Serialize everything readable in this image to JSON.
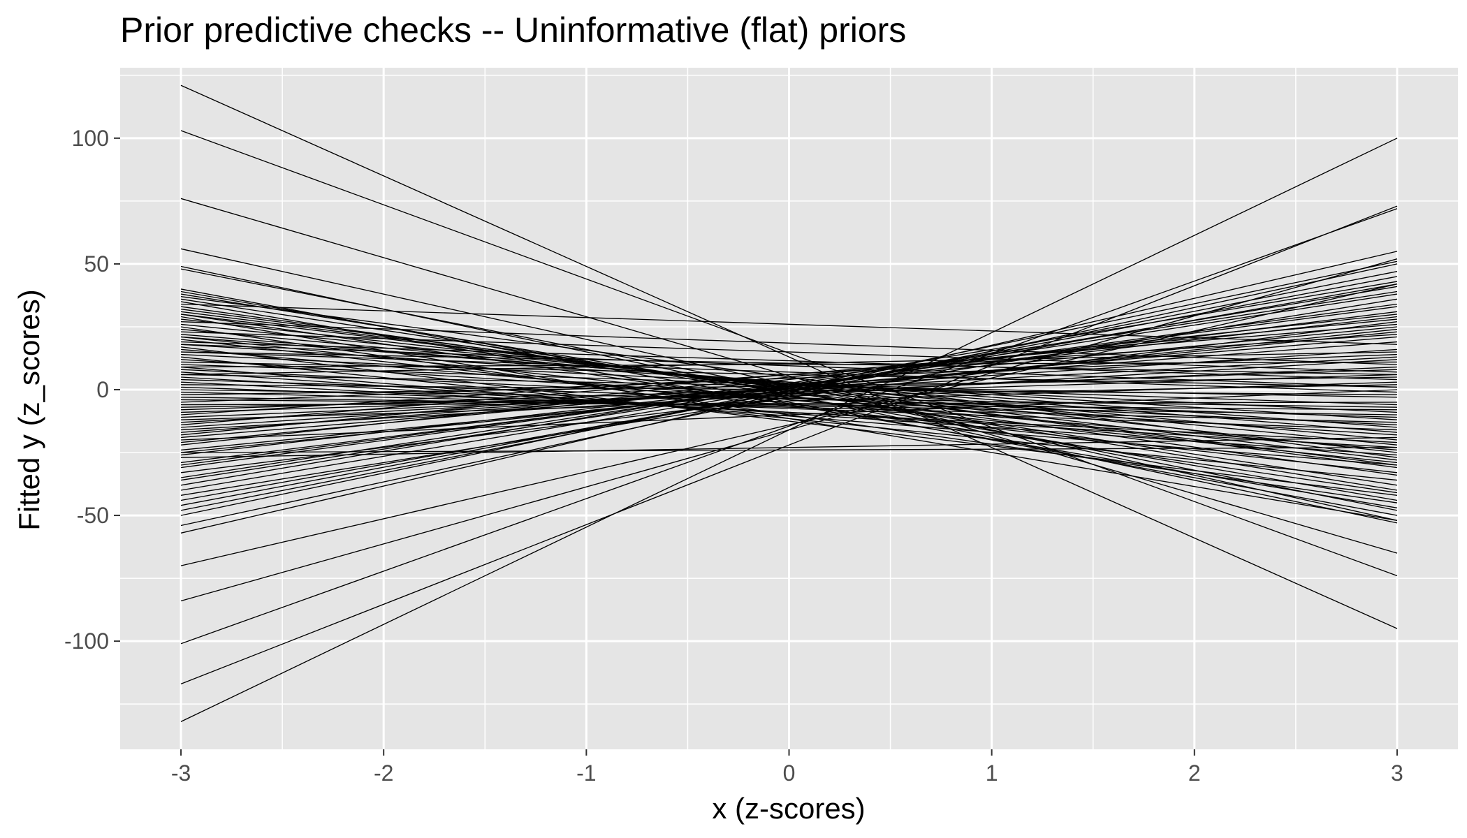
{
  "chart_data": {
    "type": "line",
    "title": "Prior predictive checks -- Uninformative (flat) priors",
    "xlabel": "x (z-scores)",
    "ylabel": "Fitted y (z_scores)",
    "xlim": [
      -3.3,
      3.3
    ],
    "ylim": [
      -143,
      128
    ],
    "x_ticks": [
      "-3",
      "-2",
      "-1",
      "0",
      "1",
      "2",
      "3"
    ],
    "y_ticks": [
      "-100",
      "-50",
      "0",
      "50",
      "100"
    ],
    "x_minor": [
      -2.5,
      -1.5,
      -0.5,
      0.5,
      1.5,
      2.5
    ],
    "y_minor": [
      -125,
      -75,
      -25,
      25,
      75,
      125
    ],
    "grid": true,
    "background": "#e5e5e5",
    "line_color": "#000000",
    "series": [
      {
        "values": [
          -3,
          121,
          3,
          -95
        ]
      },
      {
        "values": [
          -3,
          103,
          3,
          -74
        ]
      },
      {
        "values": [
          -3,
          76,
          3,
          -65
        ]
      },
      {
        "values": [
          -3,
          56,
          3,
          -52
        ]
      },
      {
        "values": [
          -3,
          49,
          3,
          -53
        ]
      },
      {
        "values": [
          -3,
          48,
          3,
          -48
        ]
      },
      {
        "values": [
          -3,
          40,
          3,
          -50
        ]
      },
      {
        "values": [
          -3,
          39,
          3,
          -44
        ]
      },
      {
        "values": [
          -3,
          38,
          3,
          -40
        ]
      },
      {
        "values": [
          -3,
          36,
          3,
          -38
        ]
      },
      {
        "values": [
          -3,
          33,
          3,
          -34
        ]
      },
      {
        "values": [
          -3,
          31,
          3,
          -30
        ]
      },
      {
        "values": [
          -3,
          30,
          3,
          -28
        ]
      },
      {
        "values": [
          -3,
          28,
          3,
          -25
        ]
      },
      {
        "values": [
          -3,
          26,
          3,
          -22
        ]
      },
      {
        "values": [
          -3,
          24,
          3,
          -20
        ]
      },
      {
        "values": [
          -3,
          22,
          3,
          -17
        ]
      },
      {
        "values": [
          -3,
          21,
          3,
          -15
        ]
      },
      {
        "values": [
          -3,
          20,
          3,
          -33
        ]
      },
      {
        "values": [
          -3,
          18,
          3,
          -12
        ]
      },
      {
        "values": [
          -3,
          16,
          3,
          -24
        ]
      },
      {
        "values": [
          -3,
          14,
          3,
          -9
        ]
      },
      {
        "values": [
          -3,
          12,
          3,
          -18
        ]
      },
      {
        "values": [
          -3,
          10,
          3,
          -6
        ]
      },
      {
        "values": [
          -3,
          8,
          3,
          -14
        ]
      },
      {
        "values": [
          -3,
          6,
          3,
          -3
        ]
      },
      {
        "values": [
          -3,
          4,
          3,
          -11
        ]
      },
      {
        "values": [
          -3,
          2,
          3,
          -2
        ]
      },
      {
        "values": [
          -3,
          34,
          3,
          18
        ]
      },
      {
        "values": [
          -3,
          27,
          3,
          10
        ]
      },
      {
        "values": [
          -3,
          23,
          3,
          7
        ]
      },
      {
        "values": [
          -3,
          19,
          3,
          4
        ]
      },
      {
        "values": [
          -3,
          15,
          3,
          -1
        ]
      },
      {
        "values": [
          -3,
          11,
          3,
          1
        ]
      },
      {
        "values": [
          -3,
          0,
          3,
          -7
        ]
      },
      {
        "values": [
          -3,
          -2,
          3,
          5
        ]
      },
      {
        "values": [
          -3,
          -5,
          3,
          14
        ]
      },
      {
        "values": [
          -3,
          -8,
          3,
          8
        ]
      },
      {
        "values": [
          -3,
          -10,
          3,
          22
        ]
      },
      {
        "values": [
          -3,
          -12,
          3,
          3
        ]
      },
      {
        "values": [
          -3,
          -14,
          3,
          26
        ]
      },
      {
        "values": [
          -3,
          -16,
          3,
          12
        ]
      },
      {
        "values": [
          -3,
          -18,
          3,
          28
        ]
      },
      {
        "values": [
          -3,
          -20,
          3,
          0
        ]
      },
      {
        "values": [
          -3,
          -22,
          3,
          30
        ]
      },
      {
        "values": [
          -3,
          -25,
          3,
          24
        ]
      },
      {
        "values": [
          -3,
          -27,
          3,
          -19
        ]
      },
      {
        "values": [
          -3,
          -30,
          3,
          33
        ]
      },
      {
        "values": [
          -3,
          -33,
          3,
          27
        ]
      },
      {
        "values": [
          -3,
          -36,
          3,
          38
        ]
      },
      {
        "values": [
          -3,
          -40,
          3,
          41
        ]
      },
      {
        "values": [
          -3,
          -42,
          3,
          36
        ]
      },
      {
        "values": [
          -3,
          -44,
          3,
          42
        ]
      },
      {
        "values": [
          -3,
          -46,
          3,
          45
        ]
      },
      {
        "values": [
          -3,
          -48,
          3,
          47
        ]
      },
      {
        "values": [
          -3,
          -50,
          3,
          51
        ]
      },
      {
        "values": [
          -3,
          -54,
          3,
          50
        ]
      },
      {
        "values": [
          -3,
          -57,
          3,
          55
        ]
      },
      {
        "values": [
          -3,
          -70,
          3,
          42
        ]
      },
      {
        "values": [
          -3,
          -84,
          3,
          52
        ]
      },
      {
        "values": [
          -3,
          -101,
          3,
          72
        ]
      },
      {
        "values": [
          -3,
          -117,
          3,
          73
        ]
      },
      {
        "values": [
          -3,
          -132,
          3,
          100
        ]
      },
      {
        "values": [
          -3,
          29,
          3,
          -52
        ]
      },
      {
        "values": [
          -3,
          25,
          3,
          -45
        ]
      },
      {
        "values": [
          -3,
          17,
          3,
          -42
        ]
      },
      {
        "values": [
          -3,
          13,
          3,
          -36
        ]
      },
      {
        "values": [
          -3,
          9,
          3,
          -30
        ]
      },
      {
        "values": [
          -3,
          7,
          3,
          -26
        ]
      },
      {
        "values": [
          -3,
          5,
          3,
          -23
        ]
      },
      {
        "values": [
          -3,
          3,
          3,
          -21
        ]
      },
      {
        "values": [
          -3,
          1,
          3,
          -16
        ]
      },
      {
        "values": [
          -3,
          -1,
          3,
          -13
        ]
      },
      {
        "values": [
          -3,
          -3,
          3,
          -10
        ]
      },
      {
        "values": [
          -3,
          -4,
          3,
          -8
        ]
      },
      {
        "values": [
          -3,
          -6,
          3,
          -5
        ]
      },
      {
        "values": [
          -3,
          -7,
          3,
          2
        ]
      },
      {
        "values": [
          -3,
          -9,
          3,
          6
        ]
      },
      {
        "values": [
          -3,
          -11,
          3,
          9
        ]
      },
      {
        "values": [
          -3,
          -13,
          3,
          13
        ]
      },
      {
        "values": [
          -3,
          -15,
          3,
          16
        ]
      },
      {
        "values": [
          -3,
          -17,
          3,
          19
        ]
      },
      {
        "values": [
          -3,
          -19,
          3,
          21
        ]
      },
      {
        "values": [
          -3,
          -21,
          3,
          25
        ]
      },
      {
        "values": [
          -3,
          -24,
          3,
          23
        ]
      },
      {
        "values": [
          -3,
          -26,
          3,
          29
        ]
      },
      {
        "values": [
          -3,
          -29,
          3,
          31
        ]
      },
      {
        "values": [
          -3,
          -31,
          3,
          34
        ]
      },
      {
        "values": [
          -3,
          -35,
          3,
          39
        ]
      },
      {
        "values": [
          -3,
          -38,
          3,
          43
        ]
      },
      {
        "values": [
          -3,
          37,
          3,
          -27
        ]
      },
      {
        "values": [
          -3,
          32,
          3,
          -31
        ]
      },
      {
        "values": [
          -3,
          35,
          3,
          -47
        ]
      },
      {
        "values": [
          -3,
          30,
          3,
          -41
        ]
      },
      {
        "values": [
          -3,
          21,
          3,
          -29
        ]
      },
      {
        "values": [
          -3,
          18,
          3,
          1
        ]
      },
      {
        "values": [
          -3,
          15,
          3,
          6
        ]
      },
      {
        "values": [
          -3,
          9,
          3,
          11
        ]
      },
      {
        "values": [
          -3,
          6,
          3,
          15
        ]
      },
      {
        "values": [
          -3,
          -25,
          3,
          -23
        ]
      }
    ]
  }
}
